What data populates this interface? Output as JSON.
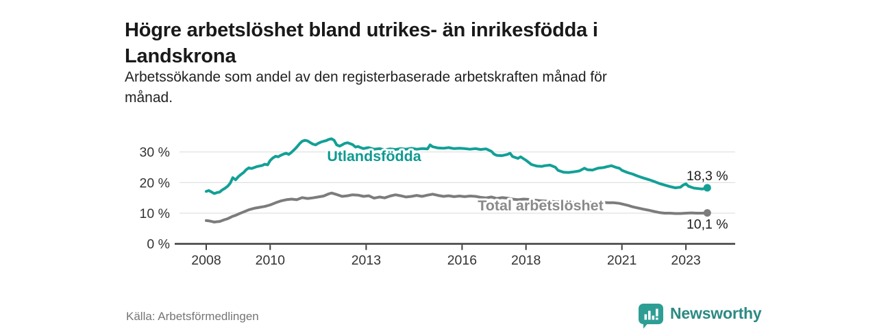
{
  "header": {
    "title_lines": [
      "Högre arbetslöshet bland utrikes- än inrikesfödda i",
      "Landskrona"
    ],
    "subtitle_lines": [
      "Arbetssökande som andel av den registerbaserade arbetskraften månad för",
      "månad."
    ]
  },
  "footer": {
    "source": "Källa: Arbetsförmedlingen",
    "logo": {
      "brand": "Newsworthy",
      "icon": "bar-chart-speech-bubble-icon",
      "icon_color": "#2E9E95",
      "text_color": "#2B8A83"
    }
  },
  "colors": {
    "accent_teal": "#12A096",
    "line_gray": "#7C7C7C",
    "grid": "#D9D9D9",
    "axis": "#3C3C3C",
    "text_dark": "#191919",
    "text_muted": "#757575"
  },
  "chart_data": {
    "type": "line",
    "title": "",
    "xlabel": "",
    "ylabel": "",
    "x_unit": "year (decimal = monthly values)",
    "x_ticks": [
      2008,
      2010,
      2013,
      2016,
      2018,
      2021,
      2023
    ],
    "y_ticks": [
      0,
      10,
      20,
      30
    ],
    "y_tick_suffix": " %",
    "xlim": [
      2007.2,
      2024.5
    ],
    "ylim": [
      0,
      38
    ],
    "grid": "horizontal",
    "legend": "inline-labels",
    "series": [
      {
        "name": "Utlandsfödda",
        "color": "#12A096",
        "label_color": "#0F9A8F",
        "end_label": "18,3 %",
        "end_value": 18.3,
        "end_label_pos": "above",
        "points": [
          [
            2008,
            17.1
          ],
          [
            2008.08,
            17.4
          ],
          [
            2008.17,
            16.9
          ],
          [
            2008.25,
            16.4
          ],
          [
            2008.33,
            16.7
          ],
          [
            2008.42,
            16.9
          ],
          [
            2008.5,
            17.6
          ],
          [
            2008.58,
            18.1
          ],
          [
            2008.67,
            18.8
          ],
          [
            2008.75,
            19.8
          ],
          [
            2008.83,
            21.6
          ],
          [
            2008.92,
            20.9
          ],
          [
            2009,
            21.9
          ],
          [
            2009.08,
            22.6
          ],
          [
            2009.17,
            23.3
          ],
          [
            2009.25,
            24.2
          ],
          [
            2009.33,
            24.8
          ],
          [
            2009.42,
            24.6
          ],
          [
            2009.5,
            24.9
          ],
          [
            2009.58,
            25.2
          ],
          [
            2009.67,
            25.4
          ],
          [
            2009.75,
            25.6
          ],
          [
            2009.83,
            26
          ],
          [
            2009.92,
            25.8
          ],
          [
            2010,
            27.2
          ],
          [
            2010.08,
            28
          ],
          [
            2010.17,
            28.6
          ],
          [
            2010.25,
            28.4
          ],
          [
            2010.33,
            28.9
          ],
          [
            2010.42,
            29.3
          ],
          [
            2010.5,
            29.6
          ],
          [
            2010.58,
            29.2
          ],
          [
            2010.67,
            29.9
          ],
          [
            2010.75,
            30.7
          ],
          [
            2010.83,
            31.6
          ],
          [
            2010.92,
            32.7
          ],
          [
            2011,
            33.5
          ],
          [
            2011.08,
            33.8
          ],
          [
            2011.17,
            33.6
          ],
          [
            2011.25,
            33.1
          ],
          [
            2011.33,
            32.6
          ],
          [
            2011.42,
            32.3
          ],
          [
            2011.5,
            32.8
          ],
          [
            2011.58,
            33.2
          ],
          [
            2011.67,
            33.5
          ],
          [
            2011.75,
            33.7
          ],
          [
            2011.83,
            34.1
          ],
          [
            2011.92,
            34.3
          ],
          [
            2012,
            33.8
          ],
          [
            2012.08,
            32.3
          ],
          [
            2012.17,
            31.9
          ],
          [
            2012.25,
            32.3
          ],
          [
            2012.33,
            32.8
          ],
          [
            2012.42,
            33
          ],
          [
            2012.5,
            32.7
          ],
          [
            2012.58,
            32.4
          ],
          [
            2012.67,
            31.6
          ],
          [
            2012.75,
            31.8
          ],
          [
            2012.83,
            31.4
          ],
          [
            2012.92,
            31.1
          ],
          [
            2013,
            31.3
          ],
          [
            2013.08,
            31.4
          ],
          [
            2013.25,
            30.9
          ],
          [
            2013.42,
            31.1
          ],
          [
            2013.58,
            30.7
          ],
          [
            2013.75,
            31
          ],
          [
            2013.92,
            30.8
          ],
          [
            2014.08,
            31.1
          ],
          [
            2014.25,
            30.9
          ],
          [
            2014.42,
            31.2
          ],
          [
            2014.58,
            30.9
          ],
          [
            2014.75,
            31.1
          ],
          [
            2014.92,
            31
          ],
          [
            2015,
            32.3
          ],
          [
            2015.08,
            31.7
          ],
          [
            2015.25,
            31.3
          ],
          [
            2015.42,
            31.2
          ],
          [
            2015.58,
            31.4
          ],
          [
            2015.75,
            31.1
          ],
          [
            2015.92,
            31.2
          ],
          [
            2016.08,
            31.1
          ],
          [
            2016.25,
            30.9
          ],
          [
            2016.42,
            31.1
          ],
          [
            2016.58,
            30.8
          ],
          [
            2016.75,
            31
          ],
          [
            2016.92,
            30.2
          ],
          [
            2017,
            29.3
          ],
          [
            2017.08,
            28.9
          ],
          [
            2017.25,
            28.8
          ],
          [
            2017.42,
            29.2
          ],
          [
            2017.5,
            29.6
          ],
          [
            2017.58,
            28.5
          ],
          [
            2017.75,
            27.9
          ],
          [
            2017.83,
            28.4
          ],
          [
            2017.92,
            27.8
          ],
          [
            2018,
            27.3
          ],
          [
            2018.17,
            25.9
          ],
          [
            2018.33,
            25.4
          ],
          [
            2018.5,
            25.3
          ],
          [
            2018.58,
            25.5
          ],
          [
            2018.75,
            25.7
          ],
          [
            2018.92,
            25
          ],
          [
            2019,
            24
          ],
          [
            2019.17,
            23.4
          ],
          [
            2019.33,
            23.3
          ],
          [
            2019.5,
            23.5
          ],
          [
            2019.67,
            23.8
          ],
          [
            2019.83,
            24.7
          ],
          [
            2019.92,
            24.2
          ],
          [
            2020.08,
            24.1
          ],
          [
            2020.25,
            24.7
          ],
          [
            2020.42,
            24.9
          ],
          [
            2020.58,
            25.3
          ],
          [
            2020.67,
            25.5
          ],
          [
            2020.83,
            24.9
          ],
          [
            2020.92,
            24.7
          ],
          [
            2021,
            24
          ],
          [
            2021.17,
            23.3
          ],
          [
            2021.33,
            22.8
          ],
          [
            2021.5,
            22.1
          ],
          [
            2021.67,
            21.5
          ],
          [
            2021.83,
            21
          ],
          [
            2022,
            20.4
          ],
          [
            2022.17,
            19.7
          ],
          [
            2022.33,
            19.2
          ],
          [
            2022.5,
            18.7
          ],
          [
            2022.67,
            18.3
          ],
          [
            2022.83,
            18.5
          ],
          [
            2022.92,
            19.2
          ],
          [
            2023,
            19.6
          ],
          [
            2023.08,
            18.8
          ],
          [
            2023.25,
            18.2
          ],
          [
            2023.42,
            18
          ],
          [
            2023.5,
            17.9
          ],
          [
            2023.58,
            18
          ],
          [
            2023.67,
            18.3
          ]
        ]
      },
      {
        "name": "Total arbetslöshet",
        "color": "#7C7C7C",
        "label_color": "#8A8A8A",
        "end_label": "10,1 %",
        "end_value": 10.1,
        "end_label_pos": "below",
        "points": [
          [
            2008,
            7.6
          ],
          [
            2008.08,
            7.5
          ],
          [
            2008.17,
            7.3
          ],
          [
            2008.25,
            7.1
          ],
          [
            2008.33,
            7.2
          ],
          [
            2008.42,
            7.3
          ],
          [
            2008.5,
            7.6
          ],
          [
            2008.58,
            7.9
          ],
          [
            2008.67,
            8.2
          ],
          [
            2008.75,
            8.6
          ],
          [
            2008.83,
            9
          ],
          [
            2008.92,
            9.3
          ],
          [
            2009,
            9.7
          ],
          [
            2009.17,
            10.4
          ],
          [
            2009.33,
            11.1
          ],
          [
            2009.5,
            11.6
          ],
          [
            2009.67,
            11.9
          ],
          [
            2009.83,
            12.2
          ],
          [
            2010,
            12.7
          ],
          [
            2010.17,
            13.4
          ],
          [
            2010.33,
            14
          ],
          [
            2010.5,
            14.4
          ],
          [
            2010.67,
            14.6
          ],
          [
            2010.83,
            14.4
          ],
          [
            2011,
            15.1
          ],
          [
            2011.17,
            14.8
          ],
          [
            2011.33,
            15
          ],
          [
            2011.5,
            15.3
          ],
          [
            2011.67,
            15.6
          ],
          [
            2011.83,
            16.3
          ],
          [
            2011.92,
            16.6
          ],
          [
            2012.08,
            16.1
          ],
          [
            2012.25,
            15.5
          ],
          [
            2012.42,
            15.7
          ],
          [
            2012.58,
            16
          ],
          [
            2012.75,
            15.9
          ],
          [
            2012.92,
            15.5
          ],
          [
            2013.08,
            15.7
          ],
          [
            2013.25,
            14.9
          ],
          [
            2013.42,
            15.3
          ],
          [
            2013.58,
            15
          ],
          [
            2013.75,
            15.6
          ],
          [
            2013.92,
            16
          ],
          [
            2014.08,
            15.7
          ],
          [
            2014.25,
            15.3
          ],
          [
            2014.42,
            15.5
          ],
          [
            2014.58,
            15.8
          ],
          [
            2014.75,
            15.5
          ],
          [
            2014.92,
            15.9
          ],
          [
            2015.08,
            16.2
          ],
          [
            2015.25,
            15.8
          ],
          [
            2015.42,
            15.5
          ],
          [
            2015.58,
            15.7
          ],
          [
            2015.75,
            15.4
          ],
          [
            2015.92,
            15.6
          ],
          [
            2016.08,
            15.4
          ],
          [
            2016.25,
            15.6
          ],
          [
            2016.42,
            15.5
          ],
          [
            2016.58,
            15.2
          ],
          [
            2016.75,
            15
          ],
          [
            2016.92,
            15.3
          ],
          [
            2017.08,
            14.8
          ],
          [
            2017.25,
            15.1
          ],
          [
            2017.42,
            14.9
          ],
          [
            2017.58,
            14.6
          ],
          [
            2017.75,
            14.4
          ],
          [
            2017.92,
            14.6
          ],
          [
            2018.08,
            14.5
          ],
          [
            2018.25,
            14.3
          ],
          [
            2018.42,
            14.1
          ],
          [
            2018.58,
            14
          ],
          [
            2018.75,
            13.9
          ],
          [
            2018.92,
            13.8
          ],
          [
            2019.08,
            13.7
          ],
          [
            2019.25,
            13.6
          ],
          [
            2019.42,
            13.5
          ],
          [
            2019.58,
            13.5
          ],
          [
            2019.75,
            13.4
          ],
          [
            2019.92,
            13.4
          ],
          [
            2020.08,
            13.5
          ],
          [
            2020.25,
            13.6
          ],
          [
            2020.42,
            13.5
          ],
          [
            2020.58,
            13.4
          ],
          [
            2020.75,
            13.4
          ],
          [
            2020.92,
            13.2
          ],
          [
            2021,
            13
          ],
          [
            2021.17,
            12.6
          ],
          [
            2021.33,
            12.1
          ],
          [
            2021.5,
            11.7
          ],
          [
            2021.67,
            11.3
          ],
          [
            2021.83,
            11
          ],
          [
            2022,
            10.6
          ],
          [
            2022.17,
            10.2
          ],
          [
            2022.33,
            10
          ],
          [
            2022.5,
            10
          ],
          [
            2022.67,
            9.9
          ],
          [
            2022.83,
            9.9
          ],
          [
            2023,
            10
          ],
          [
            2023.17,
            10.1
          ],
          [
            2023.33,
            10
          ],
          [
            2023.5,
            10
          ],
          [
            2023.67,
            10.1
          ]
        ]
      }
    ]
  }
}
